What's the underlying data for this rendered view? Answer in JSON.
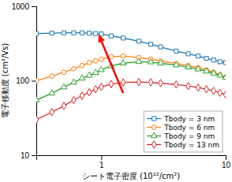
{
  "chart_data": {
    "type": "line",
    "xlabel": "シート電子密度 (10¹²/cm²)",
    "ylabel": "電子移動度 (cm²/Vs)",
    "log": true,
    "xlim": [
      0.3,
      10
    ],
    "ylim": [
      10,
      1000
    ],
    "xticks": [
      1,
      10
    ],
    "yticks": [
      10,
      100,
      1000
    ],
    "grid": false,
    "legend": "lower right",
    "x": [
      0.3,
      0.4,
      0.5,
      0.6,
      0.7,
      0.8,
      0.9,
      1.0,
      1.2,
      1.5,
      2.0,
      2.5,
      3.0,
      4.0,
      5.0,
      6.0,
      7.0,
      8.0,
      9.0,
      10.0
    ],
    "series": [
      {
        "name": "Tbody = 3 nm",
        "marker": "square",
        "values": [
          430,
          435,
          440,
          440,
          440,
          435,
          430,
          425,
          400,
          375,
          340,
          310,
          285,
          250,
          230,
          215,
          200,
          190,
          180,
          175
        ]
      },
      {
        "name": "Tbody = 6 nm",
        "marker": "circle",
        "values": [
          100,
          115,
          130,
          145,
          160,
          175,
          185,
          195,
          210,
          215,
          205,
          195,
          185,
          170,
          160,
          150,
          140,
          130,
          120,
          112
        ]
      },
      {
        "name": "Tbody = 9 nm",
        "marker": "triangle",
        "values": [
          55,
          68,
          82,
          95,
          108,
          118,
          128,
          140,
          158,
          172,
          180,
          178,
          172,
          162,
          152,
          143,
          134,
          126,
          118,
          110
        ]
      },
      {
        "name": "Tbody = 13 nm",
        "marker": "diamond",
        "values": [
          30,
          38,
          46,
          55,
          63,
          70,
          77,
          83,
          90,
          95,
          96,
          95,
          93,
          89,
          85,
          81,
          77,
          73,
          69,
          65
        ]
      }
    ],
    "annotations": [
      {
        "type": "arrow",
        "from": [
          1.5,
          68
        ],
        "to": [
          0.95,
          420
        ],
        "color": "red"
      }
    ]
  }
}
